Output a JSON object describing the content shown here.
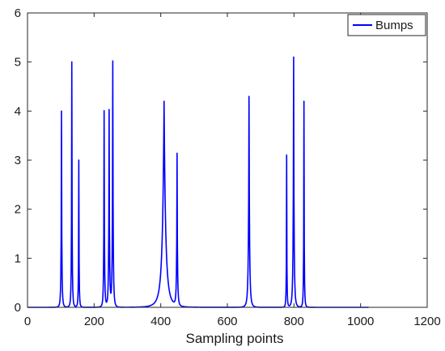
{
  "chart_data": {
    "type": "line",
    "title": "",
    "xlabel": "Sampling points",
    "ylabel": "",
    "xlim": [
      0,
      1200
    ],
    "ylim": [
      0,
      6
    ],
    "xticks": [
      0,
      200,
      400,
      600,
      800,
      1000,
      1200
    ],
    "yticks": [
      0,
      1,
      2,
      3,
      4,
      5,
      6
    ],
    "grid": false,
    "legend_position": "top-right",
    "series": [
      {
        "name": "Bumps",
        "color": "#0000ff",
        "bumps": [
          {
            "center": 102,
            "amplitude": 4.0,
            "width": 3.5
          },
          {
            "center": 133,
            "amplitude": 5.0,
            "width": 3.2
          },
          {
            "center": 154,
            "amplitude": 3.0,
            "width": 2.8
          },
          {
            "center": 230,
            "amplitude": 4.0,
            "width": 3.5
          },
          {
            "center": 245,
            "amplitude": 4.0,
            "width": 4.0
          },
          {
            "center": 256,
            "amplitude": 5.0,
            "width": 4.0
          },
          {
            "center": 410,
            "amplitude": 4.2,
            "width": 18
          },
          {
            "center": 449,
            "amplitude": 3.1,
            "width": 4.0
          },
          {
            "center": 665,
            "amplitude": 4.3,
            "width": 5.5
          },
          {
            "center": 778,
            "amplitude": 3.1,
            "width": 2.5
          },
          {
            "center": 799,
            "amplitude": 5.1,
            "width": 4.5
          },
          {
            "center": 830,
            "amplitude": 4.2,
            "width": 2.8
          }
        ],
        "x_range": [
          1,
          1024
        ]
      }
    ]
  }
}
